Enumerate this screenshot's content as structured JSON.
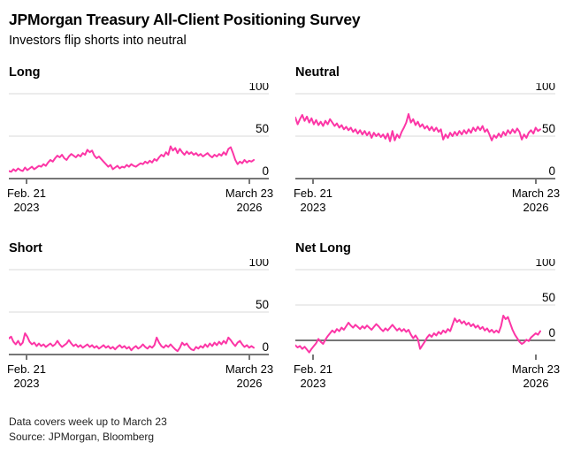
{
  "header": {
    "title": "JPMorgan Treasury All-Client Positioning Survey",
    "subtitle": "Investors flip shorts into neutral"
  },
  "footer": {
    "note": "Data covers week up to March 23",
    "source": "Source: JPMorgan, Bloomberg"
  },
  "axis": {
    "start_tick": [
      "Feb. 21",
      "2023"
    ],
    "end_tick": [
      "March 23",
      "2026"
    ]
  },
  "colors": {
    "line": "#fc36a6",
    "grid": "#d9d9d9",
    "axis": "#767676",
    "text": "#000000"
  },
  "chart_data": [
    {
      "type": "line",
      "title": "Long",
      "x_start": "Feb. 21, 2023",
      "x_end": "March 23, 2026",
      "ylim": [
        0,
        110
      ],
      "yticks": [
        100,
        50,
        0
      ],
      "grid": true,
      "values": [
        9,
        8,
        11,
        9,
        12,
        10,
        9,
        13,
        10,
        12,
        14,
        11,
        13,
        15,
        14,
        17,
        15,
        19,
        22,
        20,
        24,
        27,
        25,
        28,
        24,
        22,
        26,
        29,
        27,
        25,
        28,
        26,
        30,
        28,
        34,
        31,
        33,
        27,
        24,
        26,
        23,
        20,
        17,
        14,
        16,
        11,
        13,
        15,
        12,
        14,
        13,
        16,
        14,
        17,
        15,
        14,
        16,
        18,
        17,
        20,
        18,
        21,
        19,
        23,
        21,
        25,
        28,
        26,
        31,
        28,
        38,
        33,
        36,
        30,
        35,
        31,
        28,
        32,
        29,
        31,
        28,
        30,
        27,
        29,
        26,
        28,
        30,
        27,
        25,
        28,
        26,
        29,
        27,
        31,
        28,
        35,
        37,
        30,
        22,
        17,
        20,
        18,
        22,
        19,
        21,
        20,
        22
      ]
    },
    {
      "type": "line",
      "title": "Neutral",
      "x_start": "Feb. 21, 2023",
      "x_end": "March 23, 2026",
      "ylim": [
        0,
        110
      ],
      "yticks": [
        100,
        50,
        0
      ],
      "grid": true,
      "values": [
        72,
        64,
        70,
        75,
        68,
        73,
        66,
        71,
        64,
        69,
        63,
        67,
        62,
        68,
        64,
        70,
        66,
        62,
        65,
        60,
        63,
        58,
        61,
        57,
        60,
        55,
        58,
        53,
        57,
        52,
        56,
        51,
        55,
        48,
        54,
        50,
        53,
        49,
        52,
        47,
        53,
        44,
        56,
        45,
        52,
        48,
        55,
        60,
        66,
        76,
        66,
        70,
        63,
        67,
        61,
        64,
        59,
        62,
        57,
        61,
        56,
        60,
        55,
        58,
        46,
        52,
        48,
        54,
        50,
        55,
        51,
        56,
        52,
        57,
        53,
        58,
        54,
        60,
        56,
        61,
        57,
        62,
        55,
        58,
        52,
        45,
        51,
        48,
        53,
        49,
        55,
        51,
        57,
        53,
        58,
        54,
        59,
        55,
        46,
        52,
        48,
        54,
        57,
        53,
        60,
        56,
        58
      ]
    },
    {
      "type": "line",
      "title": "Short",
      "x_start": "Feb. 21, 2023",
      "x_end": "March 23, 2026",
      "ylim": [
        0,
        110
      ],
      "yticks": [
        100,
        50,
        0
      ],
      "grid": true,
      "values": [
        19,
        21,
        15,
        12,
        16,
        11,
        14,
        25,
        21,
        15,
        12,
        14,
        10,
        13,
        10,
        12,
        9,
        11,
        13,
        10,
        12,
        16,
        12,
        9,
        11,
        13,
        17,
        13,
        10,
        12,
        9,
        11,
        8,
        10,
        12,
        9,
        11,
        8,
        10,
        7,
        9,
        11,
        8,
        10,
        7,
        9,
        6,
        9,
        11,
        8,
        10,
        7,
        9,
        5,
        8,
        10,
        7,
        9,
        12,
        9,
        7,
        10,
        8,
        11,
        20,
        14,
        10,
        8,
        11,
        9,
        12,
        9,
        6,
        4,
        8,
        14,
        11,
        13,
        9,
        6,
        5,
        9,
        7,
        10,
        8,
        12,
        9,
        13,
        10,
        14,
        11,
        15,
        12,
        16,
        13,
        20,
        17,
        13,
        10,
        14,
        16,
        12,
        9,
        11,
        8,
        10,
        8
      ]
    },
    {
      "type": "line",
      "title": "Net Long",
      "x_start": "Feb. 21, 2023",
      "x_end": "March 23, 2026",
      "ylim": [
        -20,
        110
      ],
      "yticks": [
        100,
        50,
        0
      ],
      "grid": true,
      "values": [
        -7,
        -10,
        -8,
        -12,
        -9,
        -13,
        -17,
        -12,
        -8,
        -4,
        2,
        -2,
        -5,
        1,
        6,
        10,
        14,
        11,
        16,
        13,
        18,
        15,
        20,
        25,
        21,
        18,
        22,
        19,
        16,
        20,
        17,
        21,
        18,
        15,
        19,
        23,
        20,
        16,
        13,
        17,
        14,
        18,
        22,
        18,
        14,
        17,
        13,
        16,
        12,
        15,
        8,
        3,
        7,
        2,
        -12,
        -7,
        -2,
        4,
        8,
        5,
        10,
        7,
        12,
        9,
        14,
        11,
        16,
        13,
        22,
        31,
        26,
        29,
        24,
        27,
        22,
        25,
        20,
        23,
        18,
        21,
        16,
        19,
        14,
        17,
        12,
        15,
        11,
        14,
        11,
        20,
        35,
        30,
        33,
        24,
        15,
        8,
        3,
        -2,
        -5,
        -3,
        1,
        -1,
        4,
        7,
        10,
        8,
        13
      ]
    }
  ]
}
